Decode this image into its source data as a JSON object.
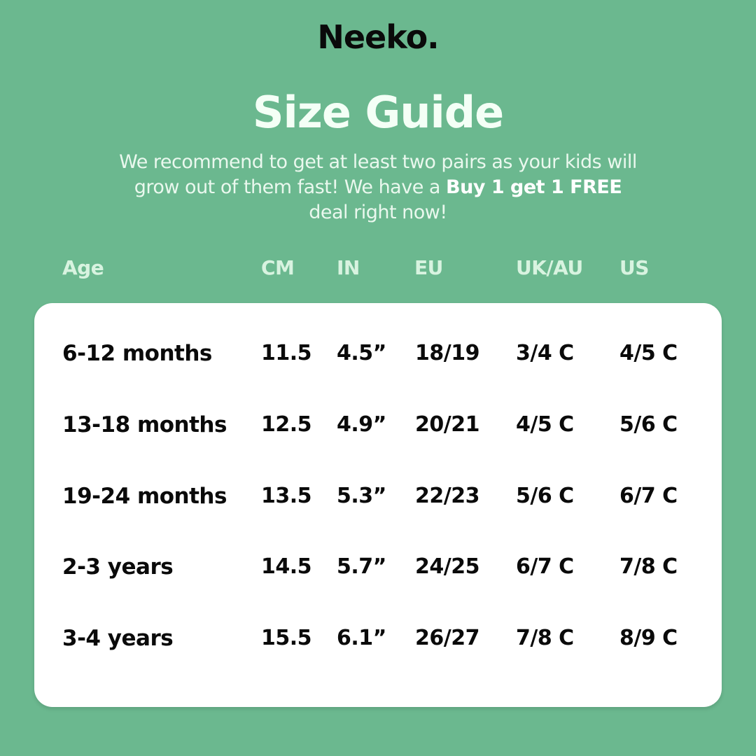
{
  "brand": "Neeko.",
  "title": "Size Guide",
  "intro": {
    "part1": "We recommend to get at least two pairs as your kids will grow out of them fast! We have a ",
    "bold1": "Buy 1 get 1 FREE",
    "part2": " deal right now!"
  },
  "table": {
    "headers": [
      "Age",
      "CM",
      "IN",
      "EU",
      "UK/AU",
      "US"
    ],
    "rows": [
      [
        "6-12 months",
        "11.5",
        "4.5”",
        "18/19",
        "3/4 C",
        "4/5 C"
      ],
      [
        "13-18 months",
        "12.5",
        "4.9”",
        "20/21",
        "4/5 C",
        "5/6 C"
      ],
      [
        "19-24 months",
        "13.5",
        "5.3”",
        "22/23",
        "5/6 C",
        "6/7 C"
      ],
      [
        "2-3 years",
        "14.5",
        "5.7”",
        "24/25",
        "6/7 C",
        "7/8 C"
      ],
      [
        "3-4 years",
        "15.5",
        "6.1”",
        "26/27",
        "7/8 C",
        "8/9 C"
      ]
    ]
  },
  "colors": {
    "background": "#6bb88f",
    "card": "#ffffff",
    "text_dark": "#0a0a0a",
    "text_light": "#f4fff6"
  }
}
